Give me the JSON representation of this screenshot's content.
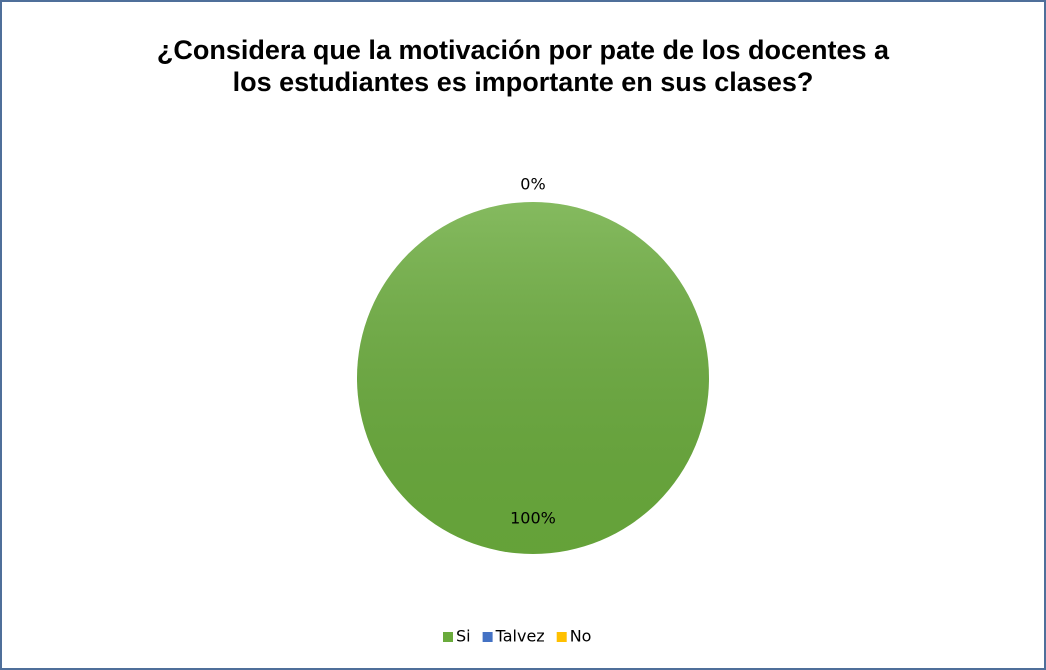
{
  "chart_data": {
    "type": "pie",
    "title": "¿Considera que la motivación por pate de los docentes a los estudiantes es importante en sus clases?",
    "categories": [
      "Si",
      "Talvez",
      "No"
    ],
    "values": [
      100,
      0,
      0
    ],
    "value_labels": [
      "100%",
      "0%",
      null
    ],
    "colors": [
      "#6aab3c",
      "#4472c4",
      "#ffc000"
    ],
    "legend": "bottom"
  }
}
